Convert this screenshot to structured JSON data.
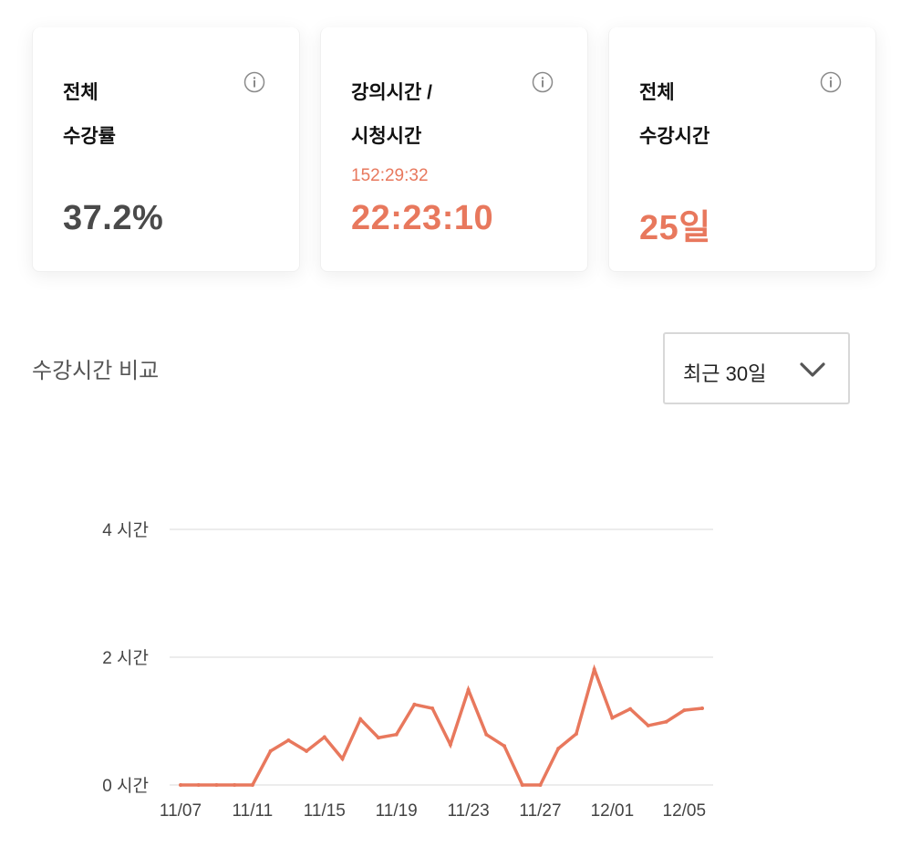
{
  "stats": {
    "total_rate": {
      "title_line1": "전체",
      "title_line2": "수강률",
      "value": "37.2%"
    },
    "lecture_time": {
      "title_line1": "강의시간 /",
      "title_line2": "시청시간",
      "sub": "152:29:32",
      "value": "22:23:10"
    },
    "total_days": {
      "title_line1": "전체",
      "title_line2": "수강시간",
      "value": "25일"
    },
    "info_icon": "info-circle-icon"
  },
  "section": {
    "title": "수강시간 비교",
    "period_select": {
      "selected": "최근 30일",
      "icon": "chevron-down-icon"
    }
  },
  "colors": {
    "accent": "#e8785d",
    "value_dark": "#4a4a4a",
    "grid": "#e6e6e6"
  },
  "chart_data": {
    "type": "line",
    "ytick_labels": [
      "0 시간",
      "2 시간",
      "4 시간"
    ],
    "yticks": [
      0,
      2,
      4
    ],
    "ylim": [
      0,
      4
    ],
    "xtick_labels": [
      "11/07",
      "11/11",
      "11/15",
      "11/19",
      "11/23",
      "11/27",
      "12/01",
      "12/05"
    ],
    "grid": true,
    "series": [
      {
        "x": [
          "11/07",
          "11/08",
          "11/09",
          "11/10",
          "11/11",
          "11/12",
          "11/13",
          "11/14",
          "11/15",
          "11/16",
          "11/17",
          "11/18",
          "11/19",
          "11/20",
          "11/21",
          "11/22",
          "11/23",
          "11/24",
          "11/25",
          "11/26",
          "11/27",
          "11/28",
          "11/29",
          "11/30",
          "12/01",
          "12/02",
          "12/03",
          "12/04",
          "12/05",
          "12/06"
        ],
        "values": [
          0,
          0,
          0,
          0,
          0,
          0.53,
          0.7,
          0.53,
          0.75,
          0.41,
          1.03,
          0.74,
          0.79,
          1.26,
          1.2,
          0.63,
          1.49,
          0.79,
          0.61,
          0,
          0,
          0.57,
          0.8,
          1.81,
          1.05,
          1.19,
          0.93,
          0.99,
          1.17,
          1.2
        ]
      }
    ]
  }
}
